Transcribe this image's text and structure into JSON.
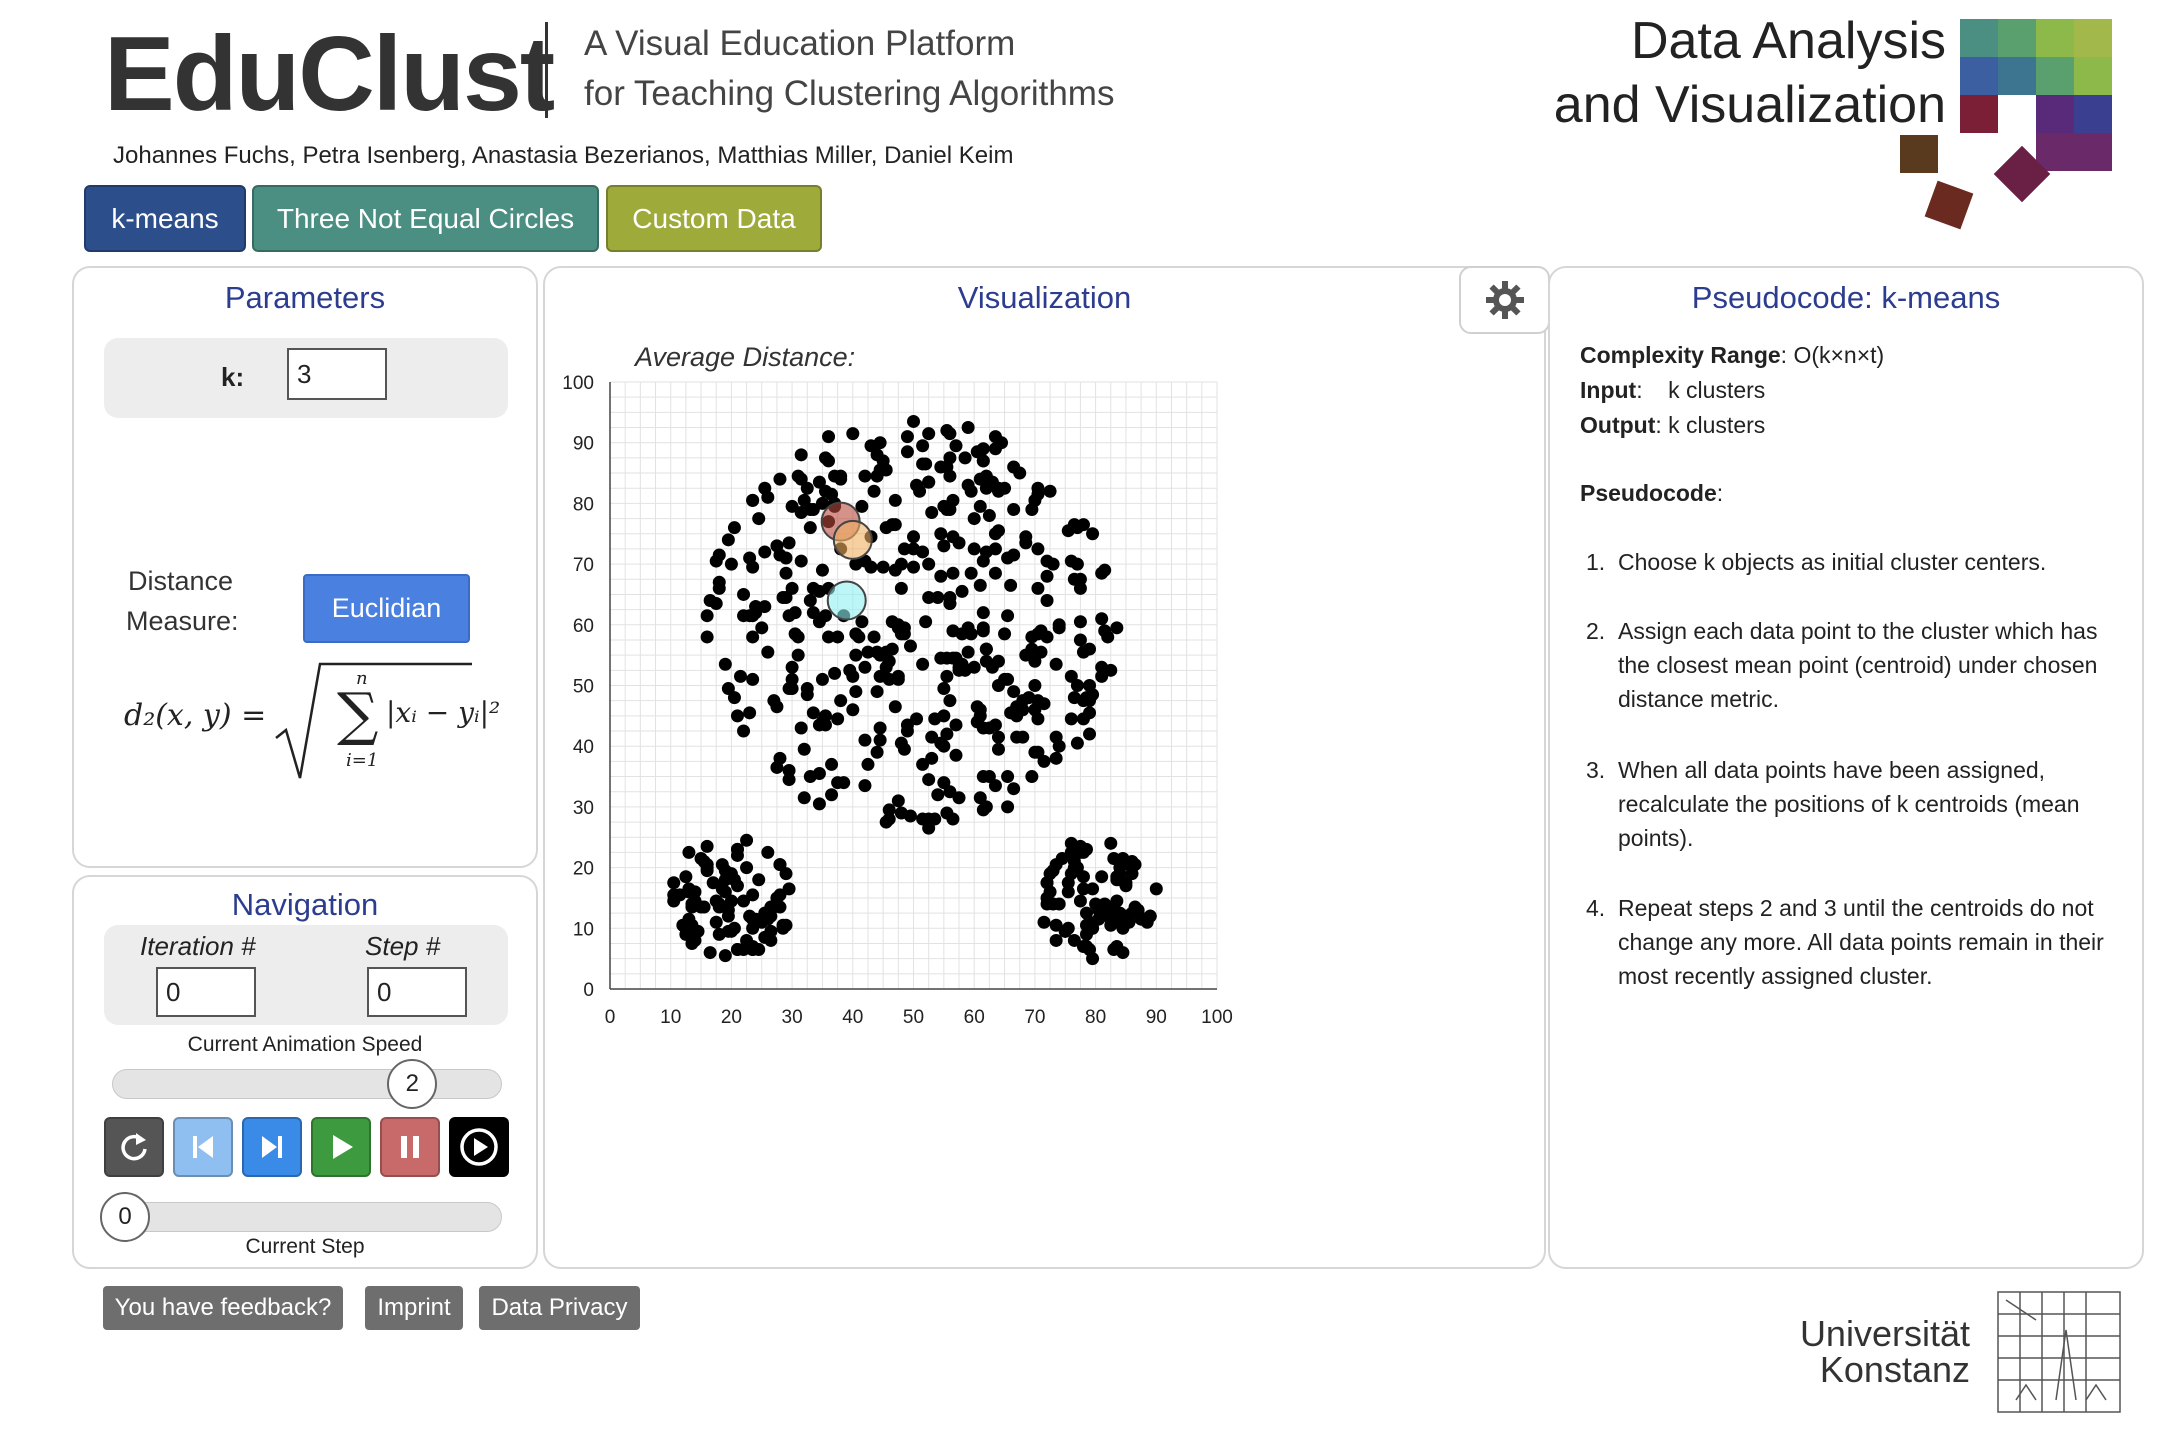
{
  "header": {
    "brand": "EduClust",
    "tagline_line1": "A Visual Education Platform",
    "tagline_line2": "for Teaching Clustering Algorithms",
    "authors": "Johannes Fuchs, Petra Isenberg, Anastasia Bezerianos, Matthias Miller, Daniel Keim",
    "dav_line1": "Data Analysis",
    "dav_line2": "and Visualization",
    "tabs": [
      "k-means",
      "Three Not Equal Circles",
      "Custom Data"
    ],
    "tab_colors": [
      "#2c4f8c",
      "#4a8f82",
      "#9eaa3a"
    ]
  },
  "parameters": {
    "title": "Parameters",
    "k_label": "k:",
    "k_value": "3",
    "distance_label_line1": "Distance",
    "distance_label_line2": "Measure:",
    "distance_button": "Euclidian",
    "formula_lhs": "d₂(x, y) =",
    "formula_sum_top": "n",
    "formula_sum_bottom": "i=1",
    "formula_body": "|xᵢ − yᵢ|²"
  },
  "navigation": {
    "title": "Navigation",
    "iteration_label": "Iteration #",
    "iteration_value": "0",
    "step_label": "Step #",
    "step_value": "0",
    "speed_label": "Current Animation Speed",
    "speed_value": "2",
    "speed_fraction": 0.77,
    "step_slider_value": "0",
    "step_label_bottom": "Current Step",
    "controls": [
      "reset-icon",
      "step-back-icon",
      "step-forward-icon",
      "play-icon",
      "pause-icon",
      "record-icon"
    ]
  },
  "visualization": {
    "title": "Visualization",
    "avg_distance_label": "Average Distance:",
    "chart_data": {
      "type": "scatter",
      "xlim": [
        0,
        100
      ],
      "ylim": [
        0,
        100
      ],
      "x_ticks": [
        0,
        10,
        20,
        30,
        40,
        50,
        60,
        70,
        80,
        90,
        100
      ],
      "y_ticks": [
        0,
        10,
        20,
        30,
        40,
        50,
        60,
        70,
        80,
        90,
        100
      ],
      "grid": true,
      "clusters_approx": [
        {
          "cx": 50,
          "cy": 60,
          "r": 34,
          "count": 420
        },
        {
          "cx": 20,
          "cy": 15,
          "r": 10,
          "count": 90
        },
        {
          "cx": 80,
          "cy": 15,
          "r": 10,
          "count": 90
        }
      ],
      "centroids": [
        {
          "x": 38,
          "y": 77,
          "color": "#b84a3c"
        },
        {
          "x": 40,
          "y": 74,
          "color": "#f0b060"
        },
        {
          "x": 39,
          "y": 64,
          "color": "#8ff0f0"
        }
      ]
    }
  },
  "pseudocode": {
    "title": "Pseudocode: k-means",
    "complexity_label": "Complexity Range",
    "complexity_value": "O(k×n×t)",
    "input_label": "Input",
    "input_value": "k clusters",
    "output_label": "Output",
    "output_value": "k clusters",
    "pseudocode_label": "Pseudocode",
    "steps": [
      "Choose k objects as initial cluster centers.",
      "Assign each data point to the cluster which has the closest mean point (centroid) under chosen distance metric.",
      "When all data points have been assigned, recalculate the positions of k centroids (mean points).",
      "Repeat steps 2 and 3 until the centroids do not change any more. All data points remain in their most recently assigned cluster."
    ]
  },
  "footer": {
    "buttons": [
      "You have feedback?",
      "Imprint",
      "Data Privacy"
    ],
    "university_line1": "Universität",
    "university_line2": "Konstanz"
  }
}
